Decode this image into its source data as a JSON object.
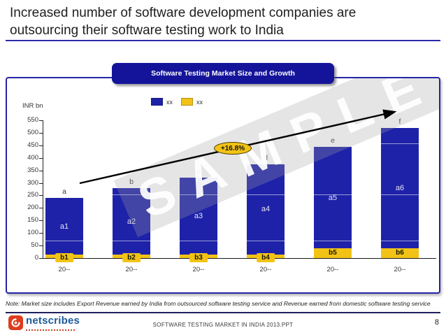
{
  "slide": {
    "title_lines": [
      "Increased number of software development companies are",
      "outsourcing their software testing work to India"
    ],
    "note": "Note: Market size includes Export Revenue earned by India from outsourced software testing service and Revenue earned from domestic software testing service",
    "footer": {
      "doc_name": "SOFTWARE TESTING MARKET IN INDIA 2013.PPT",
      "page_number": "8",
      "logo_text": "netscribes"
    }
  },
  "chart": {
    "header": "Software Testing Market Size and Growth",
    "unit_label": "INR bn",
    "watermark": "SAMPLE"
  },
  "chart_data": {
    "type": "bar",
    "stacked": true,
    "title": "Software Testing Market Size and Growth",
    "ylabel": "INR bn",
    "categories": [
      "20--",
      "20--",
      "20--",
      "20--",
      "20--",
      "20--"
    ],
    "series": [
      {
        "name": "xx",
        "color": "#f2c316",
        "values": [
          13,
          13,
          13,
          14,
          38,
          38
        ],
        "segment_labels": [
          "b1",
          "b2",
          "b3",
          "b4",
          "b5",
          "b6"
        ]
      },
      {
        "name": "xx",
        "color": "#1e22a8",
        "values": [
          227,
          265,
          307,
          361,
          407,
          482
        ],
        "segment_labels": [
          "a1",
          "a2",
          "a3",
          "a4",
          "a5",
          "a6"
        ]
      }
    ],
    "totals": [
      240,
      278,
      320,
      375,
      445,
      520
    ],
    "total_labels": [
      "a",
      "b",
      "c",
      "d",
      "e",
      "f"
    ],
    "ylim": [
      0,
      550
    ],
    "yticks": [
      0,
      50,
      100,
      150,
      200,
      250,
      300,
      350,
      400,
      450,
      500,
      550
    ],
    "grid": false,
    "legend": [
      {
        "label": "xx",
        "color": "#1e22a8"
      },
      {
        "label": "xx",
        "color": "#f2c316"
      }
    ],
    "legend_position": "top",
    "overlay_line_values": [
      70,
      253,
      457
    ],
    "annotation": {
      "type": "growth-arrow",
      "text": "+16.8%"
    }
  }
}
